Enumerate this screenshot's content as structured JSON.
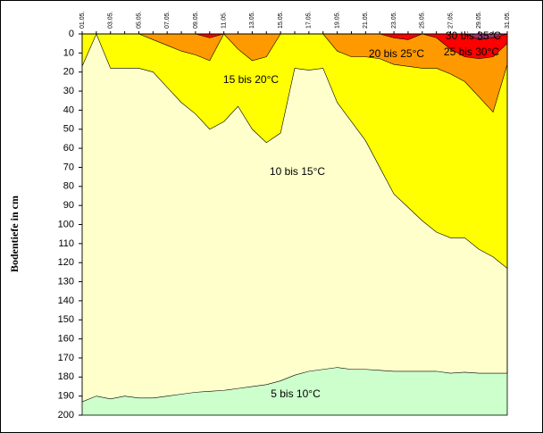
{
  "chart_data": {
    "type": "area",
    "y_label": "Bodentiefe in cm",
    "categories": [
      "01.05.",
      null,
      "03.05.",
      null,
      "05.05.",
      null,
      "07.05.",
      null,
      "09.05.",
      null,
      "11.05.",
      null,
      "13.05.",
      null,
      "15.05.",
      null,
      "17.05.",
      null,
      "19.05.",
      null,
      "21.05.",
      null,
      "23.05.",
      null,
      "25.05.",
      null,
      "27.05.",
      null,
      "29.05.",
      null,
      "31.05."
    ],
    "background": {
      "name": "5 bis 10°C",
      "color": "#ccffcc"
    },
    "series": [
      {
        "name": "10 bis 15°C",
        "color": "#ffffcc",
        "values": [
          193,
          190,
          191.5,
          190,
          191,
          191,
          190,
          189,
          188,
          187.5,
          187,
          186,
          185,
          184,
          182,
          179,
          177,
          176,
          175,
          176,
          176,
          176.5,
          177,
          177,
          177,
          177,
          178,
          177.5,
          178,
          178,
          178
        ]
      },
      {
        "name": "15 bis 20°C",
        "color": "#ffff00",
        "values": [
          17,
          0,
          18,
          18,
          18,
          20,
          28,
          36,
          42,
          50,
          46,
          38,
          50,
          57,
          52,
          18,
          19,
          18,
          36,
          46,
          56,
          70,
          84,
          91,
          98,
          104,
          107,
          107,
          113,
          117,
          123
        ]
      },
      {
        "name": "20 bis 25°C",
        "color": "#ff9900",
        "values": [
          0,
          0,
          0,
          0,
          0,
          3,
          6,
          9,
          11,
          14,
          0,
          8,
          14,
          12,
          0,
          0,
          0,
          0,
          9,
          12,
          12,
          13,
          16,
          17,
          18,
          18,
          21,
          25,
          33,
          41,
          16
        ]
      },
      {
        "name": "25 bis 30°C",
        "color": "#ff0000",
        "values": [
          0,
          0,
          0,
          0,
          0,
          0,
          0,
          0,
          0,
          2,
          0,
          0,
          0,
          0,
          0,
          0,
          0,
          0,
          0,
          0,
          0,
          0,
          2,
          3,
          0,
          2,
          8,
          12,
          13,
          12,
          5
        ]
      },
      {
        "name": "30 bis 35°C",
        "color": "#993366",
        "values": [
          0,
          0,
          0,
          0,
          0,
          0,
          0,
          0,
          0,
          0,
          0,
          0,
          0,
          0,
          0,
          0,
          0,
          0,
          0,
          0,
          0,
          0,
          0,
          0,
          0,
          0,
          0,
          0,
          3,
          2,
          0
        ]
      }
    ],
    "ylim": [
      0,
      200
    ],
    "yticks": [
      0,
      10,
      20,
      30,
      40,
      50,
      60,
      70,
      80,
      90,
      100,
      110,
      120,
      130,
      140,
      150,
      160,
      170,
      180,
      190,
      200
    ],
    "y_inverted": true
  }
}
